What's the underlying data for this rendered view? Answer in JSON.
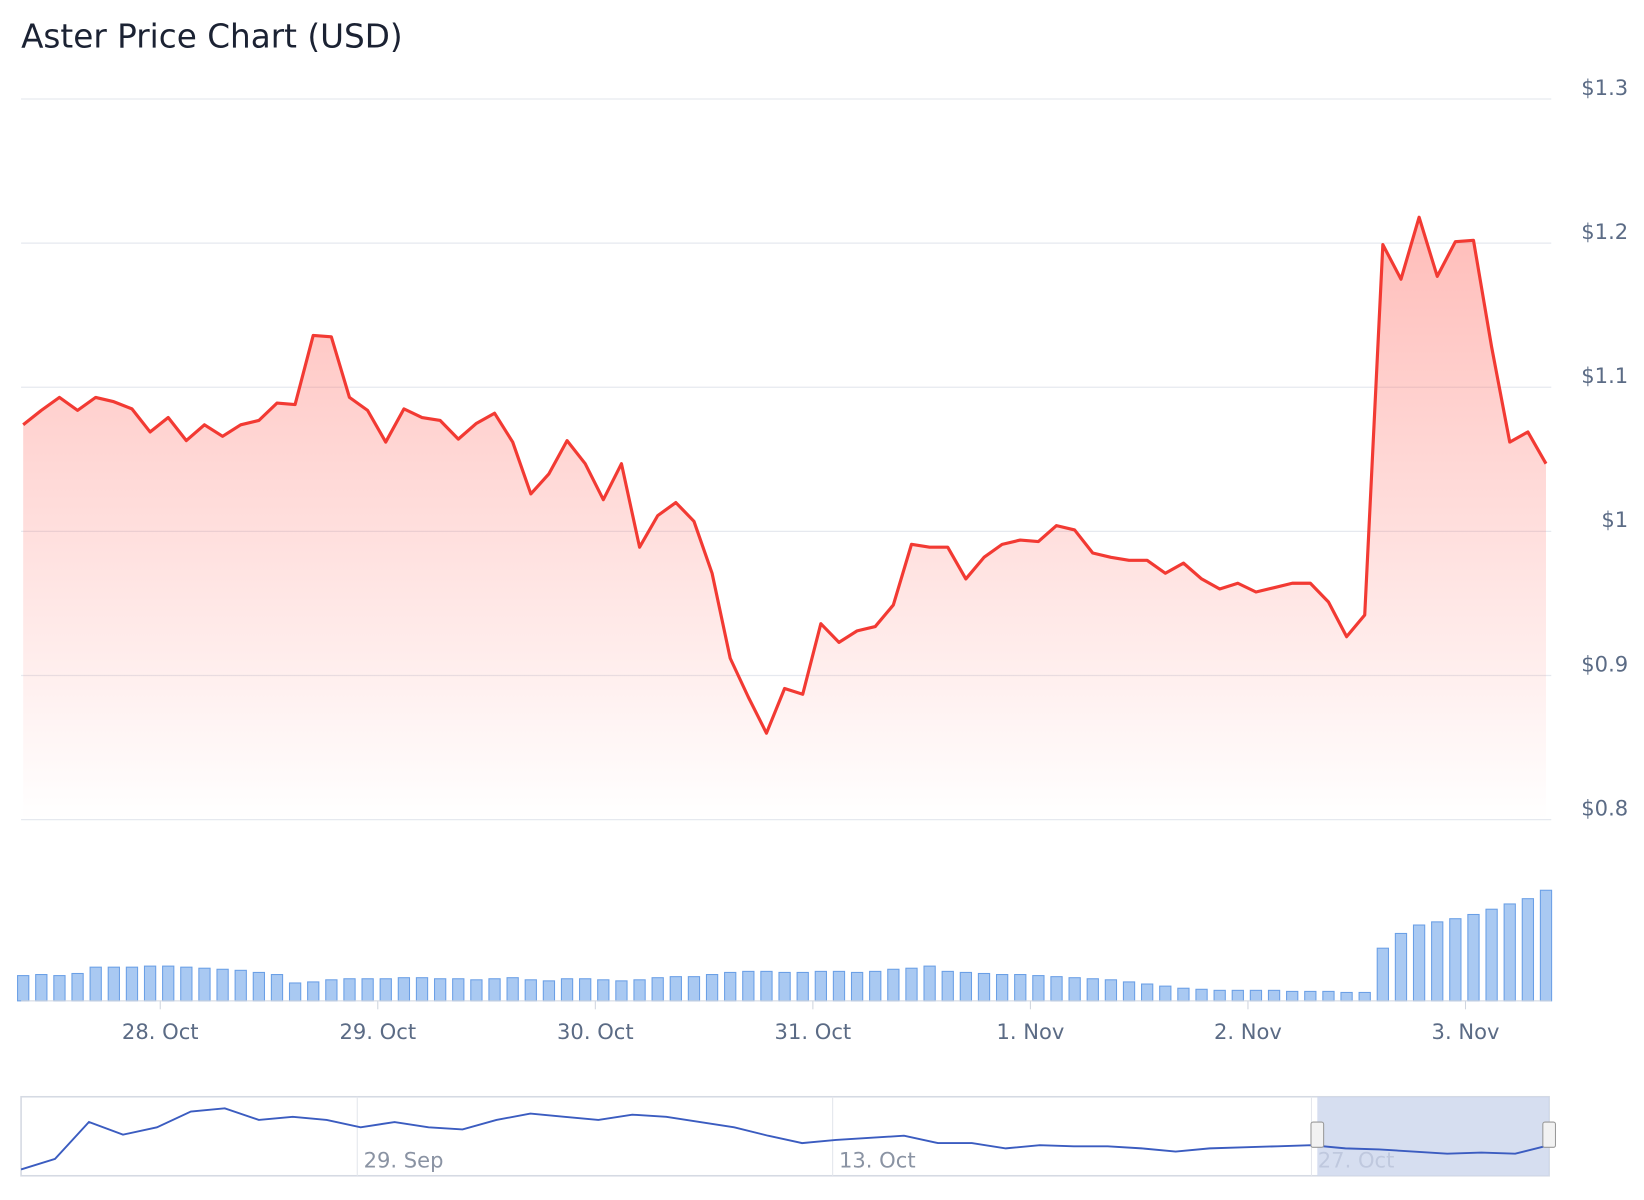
{
  "chart_data": [
    {
      "type": "line",
      "title": "Aster Price Chart (USD)",
      "color": "#f23a33",
      "grid": true,
      "values": [
        1.074,
        1.084,
        1.093,
        1.084,
        1.093,
        1.09,
        1.085,
        1.069,
        1.079,
        1.063,
        1.074,
        1.066,
        1.074,
        1.077,
        1.089,
        1.088,
        1.136,
        1.135,
        1.093,
        1.084,
        1.062,
        1.085,
        1.079,
        1.077,
        1.064,
        1.075,
        1.082,
        1.062,
        1.026,
        1.04,
        1.063,
        1.047,
        1.022,
        1.047,
        0.989,
        1.011,
        1.02,
        1.007,
        0.971,
        0.912,
        0.885,
        0.86,
        0.891,
        0.887,
        0.936,
        0.923,
        0.931,
        0.934,
        0.949,
        0.991,
        0.989,
        0.989,
        0.967,
        0.982,
        0.991,
        0.994,
        0.993,
        1.004,
        1.001,
        0.985,
        0.982,
        0.98,
        0.98,
        0.971,
        0.978,
        0.967,
        0.96,
        0.964,
        0.958,
        0.961,
        0.964,
        0.964,
        0.951,
        0.927,
        0.942,
        1.199,
        1.175,
        1.218,
        1.177,
        1.201,
        1.202,
        1.128,
        1.062,
        1.069,
        1.047
      ],
      "xlim": [
        0,
        84
      ],
      "xticks": [
        {
          "value": 7.56,
          "label": "28. Oct"
        },
        {
          "value": 19.56,
          "label": "29. Oct"
        },
        {
          "value": 31.56,
          "label": "30. Oct"
        },
        {
          "value": 43.56,
          "label": "31. Oct"
        },
        {
          "value": 55.56,
          "label": "1. Nov"
        },
        {
          "value": 67.56,
          "label": "2. Nov"
        },
        {
          "value": 79.56,
          "label": "3. Nov"
        }
      ],
      "ylim": [
        0.8,
        1.3
      ],
      "yticks": [
        {
          "value": 0.8,
          "label": "$0.8"
        },
        {
          "value": 0.9,
          "label": "$0.9"
        },
        {
          "value": 1,
          "label": "$1"
        },
        {
          "value": 1.1,
          "label": "$1.1"
        },
        {
          "value": 1.2,
          "label": "$1.2"
        },
        {
          "value": 1.3,
          "label": "$1.3"
        }
      ]
    },
    {
      "type": "bar",
      "color": "#a9c9f2",
      "values": [
        24,
        25,
        24,
        26,
        32,
        32,
        32,
        33,
        33,
        32,
        31,
        30,
        29,
        27,
        25,
        17,
        18,
        20,
        21,
        21,
        21,
        22,
        22,
        21,
        21,
        20,
        21,
        22,
        20,
        19,
        21,
        21,
        20,
        19,
        20,
        22,
        23,
        23,
        25,
        27,
        28,
        28,
        27,
        27,
        28,
        28,
        27,
        28,
        30,
        31,
        33,
        28,
        27,
        26,
        25,
        25,
        24,
        23,
        22,
        21,
        20,
        18,
        16,
        14,
        12,
        11,
        10,
        10,
        10,
        10,
        9,
        9,
        9,
        8,
        8,
        50,
        64,
        72,
        75,
        78,
        82,
        87,
        92,
        97,
        105
      ],
      "ylim": [
        0,
        110
      ]
    },
    {
      "type": "line",
      "color": "#3b5cc0",
      "values": [
        5,
        15,
        50,
        38,
        45,
        60,
        63,
        52,
        55,
        52,
        45,
        50,
        45,
        43,
        52,
        58,
        55,
        52,
        57,
        55,
        50,
        45,
        37,
        30,
        33,
        35,
        37,
        30,
        30,
        25,
        28,
        27,
        27,
        25,
        22,
        25,
        26,
        27,
        28,
        25,
        24,
        22,
        20,
        21,
        20,
        28
      ],
      "xlim": [
        0,
        45
      ],
      "xticks": [
        {
          "value": 9.9,
          "label": "29. Sep"
        },
        {
          "value": 23.9,
          "label": "13. Oct"
        },
        {
          "value": 38,
          "label": "27. Oct"
        }
      ],
      "ylim": [
        0,
        70
      ]
    }
  ]
}
